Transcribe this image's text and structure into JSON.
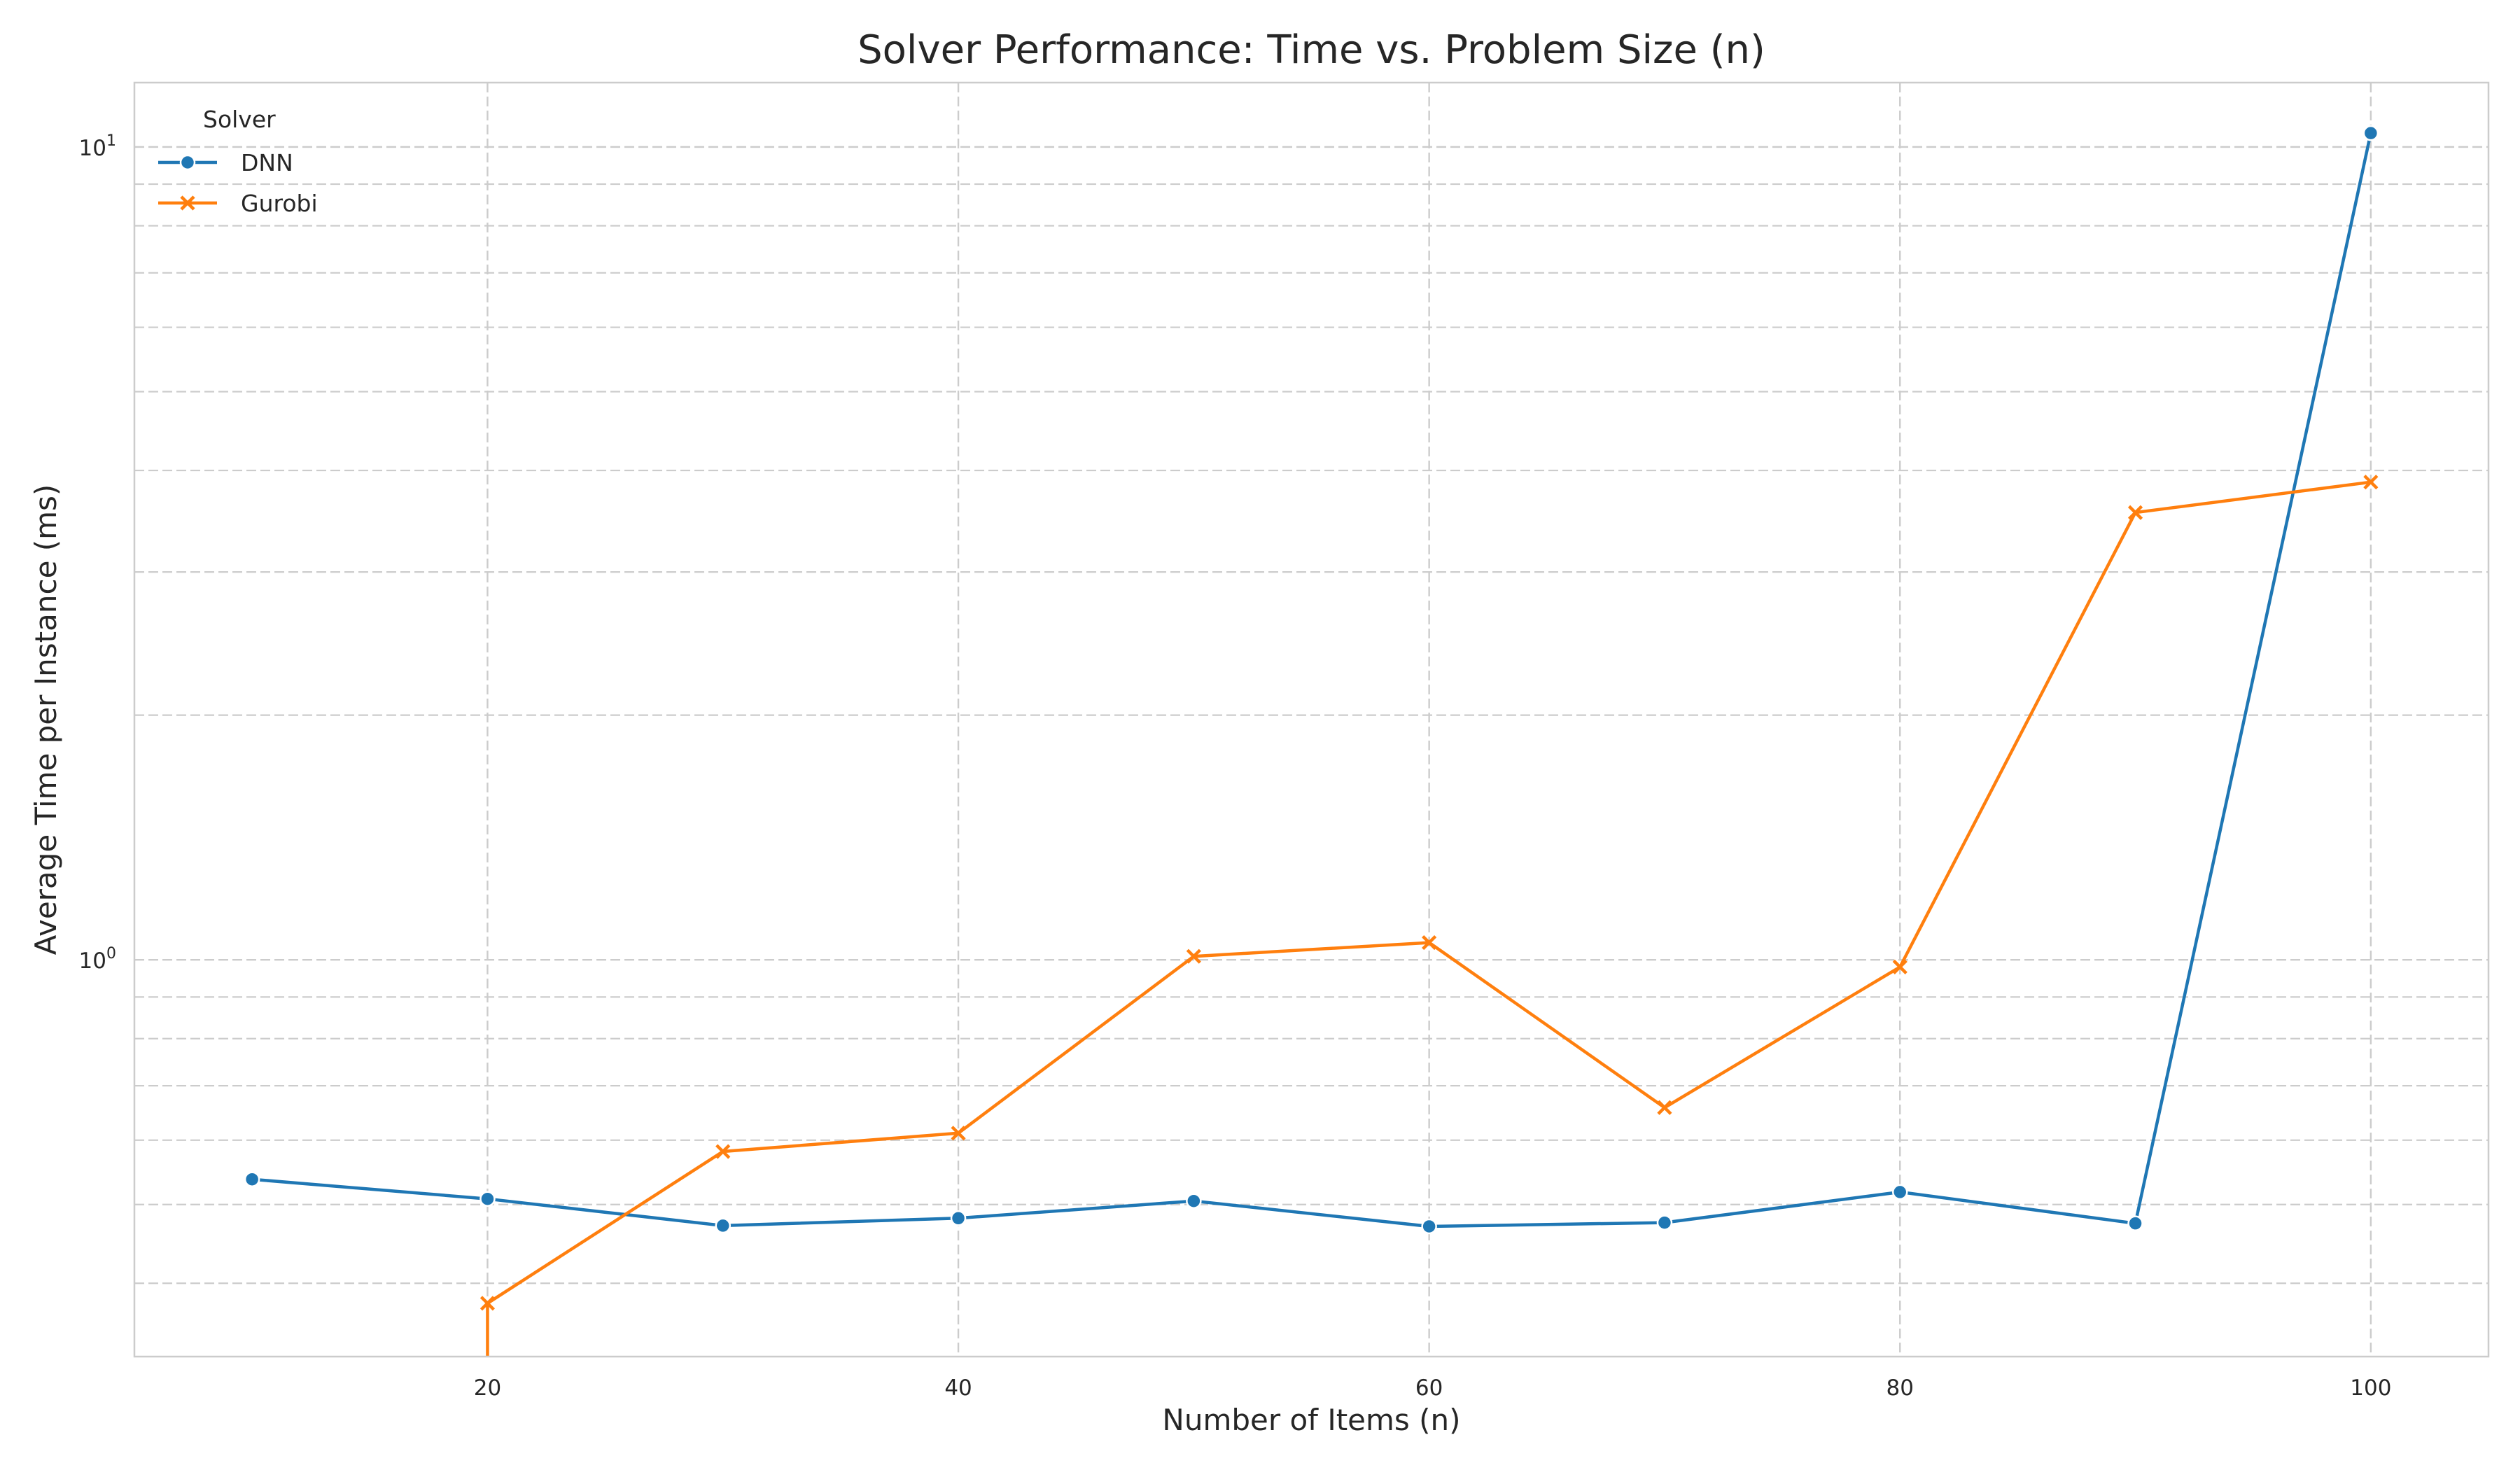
{
  "chart_data": {
    "type": "line",
    "title": "Solver Performance: Time vs. Problem Size (n)",
    "xlabel": "Number of Items (n)",
    "ylabel": "Average Time per Instance (ms)",
    "xlim": [
      5,
      105
    ],
    "ylim": [
      0.325,
      12
    ],
    "yscale": "log",
    "x_ticks": [
      20,
      40,
      60,
      80,
      100
    ],
    "y_major_ticks": [
      {
        "value": 1,
        "base": "10",
        "exp": "0"
      },
      {
        "value": 10,
        "base": "10",
        "exp": "1"
      }
    ],
    "y_minor_ticks": [
      0.4,
      0.5,
      0.6,
      0.7,
      0.8,
      0.9,
      2,
      3,
      4,
      5,
      6,
      7,
      8,
      9
    ],
    "grid": true,
    "legend": {
      "title": "Solver",
      "position": "top-left"
    },
    "series": [
      {
        "name": "DNN",
        "color": "#1f77b4",
        "marker": "circle",
        "x": [
          10,
          20,
          30,
          40,
          50,
          60,
          70,
          80,
          90,
          100
        ],
        "y": [
          0.537,
          0.508,
          0.471,
          0.481,
          0.505,
          0.47,
          0.475,
          0.518,
          0.474,
          10.4
        ]
      },
      {
        "name": "Gurobi",
        "color": "#ff7f0e",
        "marker": "x",
        "x": [
          20,
          30,
          40,
          50,
          60,
          70,
          80,
          90,
          100
        ],
        "y": [
          0.378,
          0.581,
          0.612,
          1.01,
          1.05,
          0.658,
          0.98,
          3.55,
          3.87
        ]
      }
    ]
  }
}
